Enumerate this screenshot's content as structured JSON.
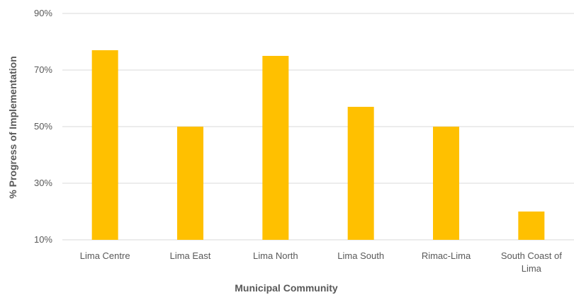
{
  "chart_data": {
    "type": "bar",
    "title": "",
    "xlabel": "Municipal Community",
    "ylabel": "% Progress of Implementation",
    "categories": [
      [
        "Lima Centre"
      ],
      [
        "Lima East"
      ],
      [
        "Lima North"
      ],
      [
        "Lima South"
      ],
      [
        "Rimac-Lima"
      ],
      [
        "South Coast of",
        "Lima"
      ]
    ],
    "values": [
      77,
      50,
      75,
      57,
      50,
      20
    ],
    "yticks": [
      10,
      30,
      50,
      70,
      90
    ],
    "ytick_labels": [
      "10%",
      "30%",
      "50%",
      "70%",
      "90%"
    ],
    "ylim": [
      10,
      90
    ],
    "grid": true,
    "legend": "none",
    "colors": {
      "bar": "#FFC000",
      "grid": "#D9D9D9",
      "text": "#595959"
    }
  }
}
